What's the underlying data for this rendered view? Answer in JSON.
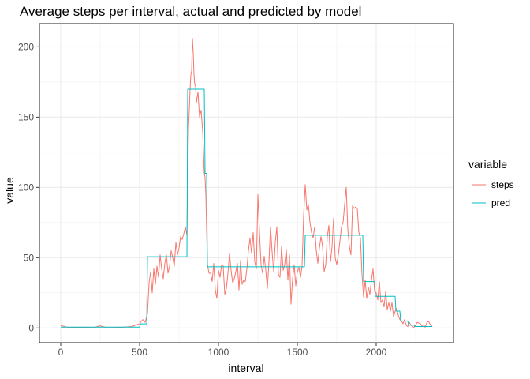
{
  "chart_data": {
    "type": "line",
    "title": "Average steps per interval, actual and predicted by model",
    "xlabel": "interval",
    "ylabel": "value",
    "xlim": [
      -135,
      2490
    ],
    "ylim": [
      -10.5,
      216.5
    ],
    "x_ticks": [
      0,
      500,
      1000,
      1500,
      2000
    ],
    "y_ticks": [
      0,
      50,
      100,
      150,
      200
    ],
    "grid": true,
    "legend": {
      "title": "variable",
      "position": "right"
    },
    "series": [
      {
        "name": "steps",
        "color": "#F8766D",
        "points": [
          [
            0,
            1.7
          ],
          [
            50,
            0.3
          ],
          [
            100,
            0.4
          ],
          [
            150,
            0.3
          ],
          [
            200,
            0.0
          ],
          [
            250,
            1.5
          ],
          [
            300,
            0.0
          ],
          [
            350,
            0.2
          ],
          [
            400,
            0.6
          ],
          [
            450,
            1.0
          ],
          [
            500,
            3.0
          ],
          [
            520,
            6.0
          ],
          [
            535,
            4.0
          ],
          [
            550,
            10.0
          ],
          [
            560,
            32.0
          ],
          [
            570,
            40.0
          ],
          [
            580,
            25.0
          ],
          [
            590,
            42.0
          ],
          [
            600,
            31.0
          ],
          [
            610,
            44.0
          ],
          [
            620,
            36.0
          ],
          [
            630,
            52.0
          ],
          [
            640,
            42.0
          ],
          [
            650,
            35.0
          ],
          [
            660,
            46.0
          ],
          [
            670,
            52.0
          ],
          [
            680,
            39.0
          ],
          [
            690,
            44.0
          ],
          [
            700,
            55.0
          ],
          [
            710,
            50.0
          ],
          [
            720,
            44.0
          ],
          [
            730,
            61.0
          ],
          [
            740,
            52.0
          ],
          [
            750,
            57.0
          ],
          [
            760,
            65.0
          ],
          [
            770,
            63.0
          ],
          [
            780,
            67.0
          ],
          [
            790,
            72.0
          ],
          [
            800,
            66.0
          ],
          [
            810,
            142.0
          ],
          [
            815,
            155.0
          ],
          [
            820,
            170.0
          ],
          [
            825,
            180.0
          ],
          [
            830,
            183.0
          ],
          [
            835,
            206.0
          ],
          [
            840,
            196.0
          ],
          [
            845,
            180.0
          ],
          [
            850,
            173.0
          ],
          [
            855,
            172.0
          ],
          [
            860,
            160.0
          ],
          [
            870,
            168.0
          ],
          [
            880,
            150.0
          ],
          [
            890,
            155.0
          ],
          [
            900,
            140.0
          ],
          [
            910,
            110.0
          ],
          [
            915,
            107.0
          ],
          [
            920,
            94.0
          ],
          [
            930,
            45.0
          ],
          [
            940,
            39.0
          ],
          [
            950,
            39.0
          ],
          [
            960,
            33.0
          ],
          [
            970,
            46.0
          ],
          [
            980,
            27.0
          ],
          [
            990,
            21.0
          ],
          [
            1000,
            41.0
          ],
          [
            1010,
            36.0
          ],
          [
            1020,
            45.0
          ],
          [
            1030,
            44.0
          ],
          [
            1040,
            24.0
          ],
          [
            1050,
            28.0
          ],
          [
            1060,
            39.0
          ],
          [
            1070,
            53.0
          ],
          [
            1080,
            41.0
          ],
          [
            1090,
            32.0
          ],
          [
            1100,
            35.0
          ],
          [
            1110,
            40.0
          ],
          [
            1120,
            46.0
          ],
          [
            1130,
            27.0
          ],
          [
            1140,
            48.0
          ],
          [
            1150,
            31.0
          ],
          [
            1160,
            34.0
          ],
          [
            1170,
            33.0
          ],
          [
            1180,
            42.0
          ],
          [
            1190,
            55.0
          ],
          [
            1200,
            64.0
          ],
          [
            1210,
            53.0
          ],
          [
            1220,
            68.0
          ],
          [
            1230,
            47.0
          ],
          [
            1240,
            42.0
          ],
          [
            1250,
            95.0
          ],
          [
            1260,
            68.0
          ],
          [
            1270,
            45.0
          ],
          [
            1280,
            39.0
          ],
          [
            1290,
            51.0
          ],
          [
            1300,
            41.0
          ],
          [
            1310,
            28.0
          ],
          [
            1320,
            47.0
          ],
          [
            1330,
            72.0
          ],
          [
            1340,
            54.0
          ],
          [
            1350,
            40.0
          ],
          [
            1360,
            61.0
          ],
          [
            1370,
            72.0
          ],
          [
            1380,
            38.0
          ],
          [
            1390,
            36.0
          ],
          [
            1400,
            58.0
          ],
          [
            1410,
            41.0
          ],
          [
            1420,
            45.0
          ],
          [
            1430,
            56.0
          ],
          [
            1440,
            34.0
          ],
          [
            1450,
            52.0
          ],
          [
            1460,
            17.0
          ],
          [
            1470,
            35.0
          ],
          [
            1480,
            45.0
          ],
          [
            1490,
            30.0
          ],
          [
            1500,
            40.0
          ],
          [
            1510,
            43.0
          ],
          [
            1520,
            36.0
          ],
          [
            1530,
            44.0
          ],
          [
            1540,
            80.0
          ],
          [
            1550,
            102.0
          ],
          [
            1560,
            84.0
          ],
          [
            1570,
            88.0
          ],
          [
            1580,
            75.0
          ],
          [
            1590,
            68.0
          ],
          [
            1600,
            64.0
          ],
          [
            1610,
            72.0
          ],
          [
            1620,
            55.0
          ],
          [
            1630,
            46.0
          ],
          [
            1640,
            57.0
          ],
          [
            1650,
            65.0
          ],
          [
            1660,
            58.0
          ],
          [
            1670,
            40.0
          ],
          [
            1680,
            45.0
          ],
          [
            1690,
            65.0
          ],
          [
            1700,
            73.0
          ],
          [
            1710,
            47.0
          ],
          [
            1720,
            58.0
          ],
          [
            1730,
            78.0
          ],
          [
            1740,
            50.0
          ],
          [
            1750,
            45.0
          ],
          [
            1760,
            52.0
          ],
          [
            1770,
            62.0
          ],
          [
            1780,
            72.0
          ],
          [
            1790,
            75.0
          ],
          [
            1800,
            88.0
          ],
          [
            1810,
            100.0
          ],
          [
            1820,
            70.0
          ],
          [
            1830,
            58.0
          ],
          [
            1840,
            52.0
          ],
          [
            1850,
            87.0
          ],
          [
            1860,
            85.0
          ],
          [
            1870,
            86.0
          ],
          [
            1880,
            85.0
          ],
          [
            1890,
            68.0
          ],
          [
            1900,
            64.0
          ],
          [
            1910,
            38.0
          ],
          [
            1920,
            22.0
          ],
          [
            1930,
            34.0
          ],
          [
            1940,
            21.0
          ],
          [
            1950,
            29.0
          ],
          [
            1960,
            24.0
          ],
          [
            1970,
            34.0
          ],
          [
            1980,
            42.0
          ],
          [
            1990,
            26.0
          ],
          [
            2000,
            25.0
          ],
          [
            2010,
            20.0
          ],
          [
            2020,
            33.0
          ],
          [
            2030,
            18.0
          ],
          [
            2040,
            20.0
          ],
          [
            2050,
            15.0
          ],
          [
            2060,
            26.0
          ],
          [
            2070,
            13.0
          ],
          [
            2080,
            18.0
          ],
          [
            2090,
            12.0
          ],
          [
            2100,
            18.0
          ],
          [
            2110,
            8.0
          ],
          [
            2120,
            12.0
          ],
          [
            2130,
            14.0
          ],
          [
            2140,
            9.0
          ],
          [
            2150,
            6.0
          ],
          [
            2160,
            5.0
          ],
          [
            2170,
            3.0
          ],
          [
            2180,
            6.0
          ],
          [
            2190,
            2.0
          ],
          [
            2200,
            1.0
          ],
          [
            2210,
            4.0
          ],
          [
            2220,
            2.0
          ],
          [
            2230,
            1.0
          ],
          [
            2240,
            0.5
          ],
          [
            2250,
            2.0
          ],
          [
            2260,
            4.0
          ],
          [
            2270,
            3.5
          ],
          [
            2280,
            3.0
          ],
          [
            2290,
            1.5
          ],
          [
            2300,
            2.5
          ],
          [
            2310,
            0.5
          ],
          [
            2320,
            3.5
          ],
          [
            2330,
            5.0
          ],
          [
            2340,
            3.0
          ],
          [
            2355,
            1.0
          ]
        ]
      },
      {
        "name": "pred",
        "color": "#00BFC4",
        "points": [
          [
            0,
            0.6
          ],
          [
            500,
            0.6
          ],
          [
            505,
            2.9
          ],
          [
            545,
            2.9
          ],
          [
            550,
            50.7
          ],
          [
            800,
            50.7
          ],
          [
            805,
            169.9
          ],
          [
            910,
            169.9
          ],
          [
            915,
            110.0
          ],
          [
            925,
            110.0
          ],
          [
            930,
            43.5
          ],
          [
            1545,
            43.5
          ],
          [
            1550,
            66.0
          ],
          [
            1915,
            66.0
          ],
          [
            1920,
            33.0
          ],
          [
            1990,
            33.0
          ],
          [
            1995,
            22.5
          ],
          [
            2120,
            22.5
          ],
          [
            2125,
            12.0
          ],
          [
            2150,
            12.0
          ],
          [
            2155,
            5.0
          ],
          [
            2200,
            5.0
          ],
          [
            2205,
            2.0
          ],
          [
            2240,
            2.0
          ],
          [
            2245,
            1.0
          ],
          [
            2355,
            1.0
          ]
        ]
      }
    ]
  }
}
